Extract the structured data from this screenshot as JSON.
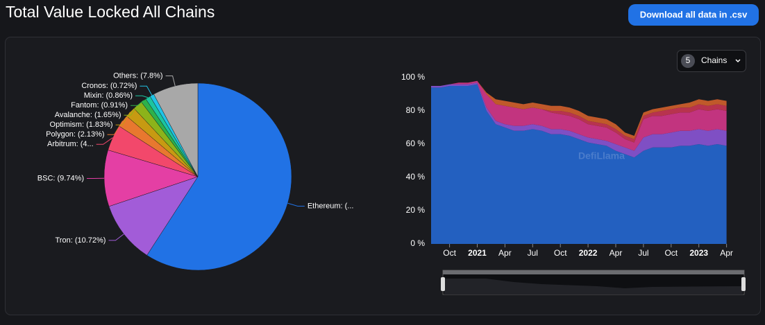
{
  "ui": {
    "title": "Total Value Locked All Chains",
    "button": "Download all data in .csv",
    "chain_count": "5",
    "chain_selector": "Chains",
    "watermark": "DefiLlama"
  },
  "chart_data": [
    {
      "type": "pie",
      "values": [
        59.14,
        10.72,
        9.74,
        4.5,
        2.13,
        1.83,
        1.65,
        0.91,
        0.86,
        0.72,
        7.8
      ],
      "value_labels": [
        "Ethereum: (...",
        "Tron: (10.72%)",
        "BSC: (9.74%)",
        "Arbitrum: (4...",
        "Polygon: (2.13%)",
        "Optimism: (1.83%)",
        "Avalanche: (1.65%)",
        "Fantom: (0.91%)",
        "Mixin: (0.86%)",
        "Cronos: (0.72%)",
        "Others: (7.8%)"
      ],
      "colors": [
        "#2172e5",
        "#a25cd8",
        "#e43fa4",
        "#f2486b",
        "#e8782f",
        "#c79a12",
        "#8cb31a",
        "#2eb14b",
        "#1bc5a0",
        "#20c3e6",
        "#a8a8a8"
      ]
    },
    {
      "type": "area",
      "stacked": true,
      "x": [
        "2020-08",
        "2020-09",
        "2020-10",
        "2020-11",
        "2020-12",
        "2021-01",
        "2021-02",
        "2021-03",
        "2021-04",
        "2021-05",
        "2021-06",
        "2021-07",
        "2021-08",
        "2021-09",
        "2021-10",
        "2021-11",
        "2021-12",
        "2022-01",
        "2022-02",
        "2022-03",
        "2022-04",
        "2022-05",
        "2022-06",
        "2022-07",
        "2022-08",
        "2022-09",
        "2022-10",
        "2022-11",
        "2022-12",
        "2023-01",
        "2023-02",
        "2023-03",
        "2023-04"
      ],
      "series": [
        {
          "color": "#2360c0",
          "values": [
            94,
            94,
            95,
            95,
            95,
            96,
            80,
            72,
            70,
            68,
            68,
            69,
            68,
            66,
            66,
            65,
            63,
            61,
            60,
            59,
            56,
            54,
            52,
            56,
            58,
            58,
            58,
            59,
            59,
            60,
            59,
            60,
            59
          ]
        },
        {
          "color": "#7f4fc4",
          "values": [
            1,
            1,
            1,
            1,
            1,
            1,
            2,
            2,
            2,
            3,
            3,
            3,
            3,
            3,
            3,
            3,
            3,
            3,
            3,
            3,
            4,
            4,
            4,
            8,
            8,
            8,
            9,
            9,
            9,
            9,
            9,
            9,
            9
          ]
        },
        {
          "color": "#c2347f",
          "values": [
            0,
            0,
            0,
            1,
            1,
            1,
            8,
            10,
            11,
            11,
            10,
            10,
            10,
            10,
            9,
            9,
            9,
            8,
            8,
            8,
            7,
            5,
            5,
            11,
            11,
            11,
            11,
            11,
            11,
            12,
            12,
            12,
            12
          ]
        },
        {
          "color": "#b8334e",
          "values": [
            0,
            0,
            0,
            0,
            0,
            0,
            0,
            0,
            0,
            0,
            0,
            0,
            0,
            1,
            2,
            2,
            2,
            2,
            2,
            2,
            2,
            2,
            2,
            2,
            2,
            3,
            3,
            3,
            3,
            3,
            3,
            3,
            3
          ]
        },
        {
          "color": "#c0592a",
          "values": [
            0,
            0,
            0,
            0,
            0,
            0,
            1,
            3,
            3,
            3,
            3,
            3,
            3,
            3,
            3,
            3,
            3,
            3,
            3,
            3,
            3,
            2,
            2,
            2,
            2,
            2,
            2,
            2,
            3,
            3,
            3,
            3,
            3
          ]
        }
      ],
      "ylim": [
        0,
        100
      ],
      "yticks": [
        {
          "value": 0,
          "label": "0 %"
        },
        {
          "value": 20,
          "label": "20 %"
        },
        {
          "value": 40,
          "label": "40 %"
        },
        {
          "value": 60,
          "label": "60 %"
        },
        {
          "value": 80,
          "label": "80 %"
        },
        {
          "value": 100,
          "label": "100 %"
        }
      ],
      "xticks": [
        {
          "value": "2020-10",
          "label": "Oct"
        },
        {
          "value": "2021-01",
          "label": "2021"
        },
        {
          "value": "2021-04",
          "label": "Apr"
        },
        {
          "value": "2021-07",
          "label": "Jul"
        },
        {
          "value": "2021-10",
          "label": "Oct"
        },
        {
          "value": "2022-01",
          "label": "2022"
        },
        {
          "value": "2022-04",
          "label": "Apr"
        },
        {
          "value": "2022-07",
          "label": "Jul"
        },
        {
          "value": "2022-10",
          "label": "Oct"
        },
        {
          "value": "2023-01",
          "label": "2023"
        },
        {
          "value": "2023-04",
          "label": "Apr"
        }
      ]
    }
  ]
}
